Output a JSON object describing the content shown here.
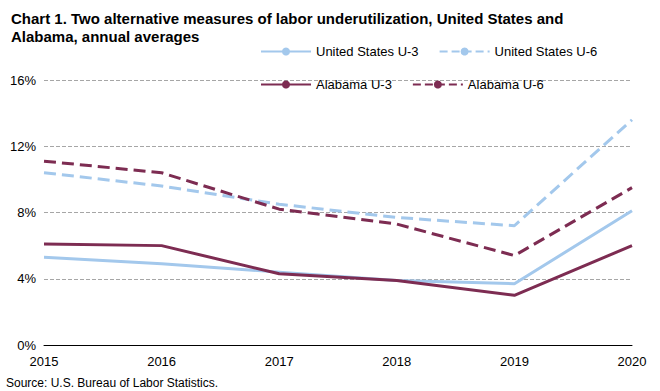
{
  "chart_data": {
    "type": "line",
    "title": "Chart 1. Two alternative measures of labor underutilization, United States and Alabama, annual averages",
    "source": "Source: U.S. Bureau of Labor Statistics.",
    "categories": [
      "2015",
      "2016",
      "2017",
      "2018",
      "2019",
      "2020"
    ],
    "series": [
      {
        "name": "United States U-3",
        "color": "#a3c8ec",
        "line_style": "solid",
        "values": [
          5.3,
          4.9,
          4.4,
          3.9,
          3.7,
          8.1
        ]
      },
      {
        "name": "United States U-6",
        "color": "#a3c8ec",
        "line_style": "dashed",
        "values": [
          10.4,
          9.6,
          8.5,
          7.7,
          7.2,
          13.6
        ]
      },
      {
        "name": "Alabama U-3",
        "color": "#7d2c52",
        "line_style": "solid",
        "values": [
          6.1,
          6.0,
          4.3,
          3.9,
          3.0,
          6.0
        ]
      },
      {
        "name": "Alabama U-6",
        "color": "#7d2c52",
        "line_style": "dashed",
        "values": [
          11.1,
          10.4,
          8.2,
          7.3,
          5.4,
          9.5
        ]
      }
    ],
    "ylim": [
      0,
      16
    ],
    "yticks": [
      {
        "value": 0,
        "label": "0%"
      },
      {
        "value": 4,
        "label": "4%"
      },
      {
        "value": 8,
        "label": "8%"
      },
      {
        "value": 12,
        "label": "12%"
      },
      {
        "value": 16,
        "label": "16%"
      }
    ],
    "grid": true,
    "legend": "top-right"
  }
}
